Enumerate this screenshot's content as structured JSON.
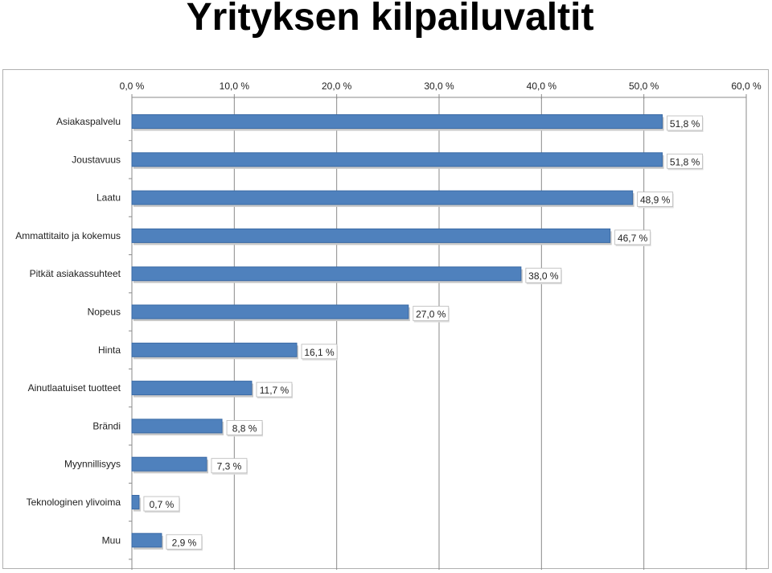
{
  "page": {
    "title": "Yrityksen kilpailuvaltit"
  },
  "colors": {
    "bar": "#4f81bd",
    "bar_edge": "#3a6aa5",
    "shadow": "#c8c8c8",
    "gridline": "#8a8a8a",
    "label_box_edge": "#b8b8b8"
  },
  "chart_data": {
    "type": "bar",
    "orientation": "horizontal",
    "title": "Yrityksen kilpailuvaltit",
    "xlabel": "",
    "ylabel": "",
    "xlim": [
      0,
      60
    ],
    "x_ticks": [
      0,
      10,
      20,
      30,
      40,
      50,
      60
    ],
    "x_tick_labels": [
      "0,0 %",
      "10,0 %",
      "20,0 %",
      "30,0 %",
      "40,0 %",
      "50,0 %",
      "60,0 %"
    ],
    "x_axis_position": "top",
    "grid": true,
    "legend": "none",
    "categories": [
      "Asiakaspalvelu",
      "Joustavuus",
      "Laatu",
      "Ammattitaito  ja kokemus",
      "Pitkät asiakassuhteet",
      "Nopeus",
      "Hinta",
      "Ainutlaatuiset tuotteet",
      "Brändi",
      "Myynnillisyys",
      "Teknologinen ylivoima",
      "Muu"
    ],
    "values": [
      51.8,
      51.8,
      48.9,
      46.7,
      38.0,
      27.0,
      16.1,
      11.7,
      8.8,
      7.3,
      0.7,
      2.9
    ],
    "data_labels": [
      "51,8 %",
      "51,8 %",
      "48,9 %",
      "46,7 %",
      "38,0 %",
      "27,0 %",
      "16,1 %",
      "11,7 %",
      "8,8 %",
      "7,3 %",
      "0,7 %",
      "2,9 %"
    ]
  }
}
